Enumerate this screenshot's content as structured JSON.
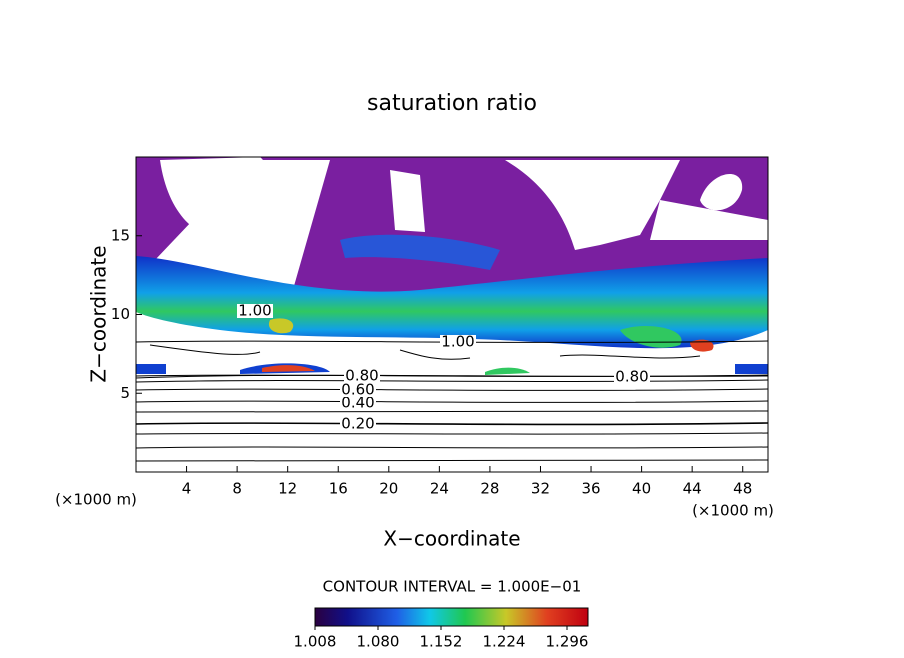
{
  "chart_data": {
    "type": "contour",
    "title": "saturation ratio",
    "x_label": "X−coordinate",
    "y_label": "Z−coordinate",
    "unit_label": "(×1000 m)",
    "xlim": [
      0,
      50
    ],
    "xticks": [
      4,
      8,
      12,
      16,
      20,
      24,
      28,
      32,
      36,
      40,
      44,
      48
    ],
    "ylim": [
      0,
      20
    ],
    "yticks": [
      5,
      10,
      15
    ],
    "contour_levels": [
      {
        "value": 0.2,
        "label": "0.20"
      },
      {
        "value": 0.4,
        "label": "0.40"
      },
      {
        "value": 0.6,
        "label": "0.60"
      },
      {
        "value": 0.8,
        "label": "0.80"
      },
      {
        "value": 1.0,
        "label": "1.00"
      }
    ],
    "contour_interval": "CONTOUR INTERVAL = 1.000E−01",
    "clim": [
      1.008,
      1.32
    ],
    "cticks": [
      1.008,
      {
        "value": 1.08,
        "label": "1.080"
      },
      1.152,
      1.224,
      1.296
    ]
  }
}
